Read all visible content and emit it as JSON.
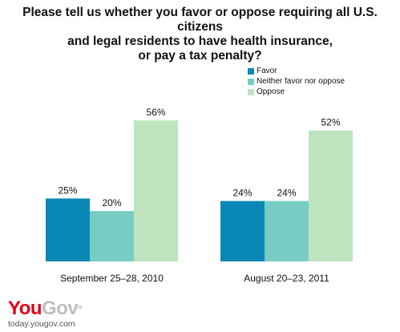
{
  "title_lines": [
    "Please tell us whether you favor or oppose requiring all U.S. citizens",
    "and legal residents to have health insurance,",
    "or pay a tax penalty?"
  ],
  "colors": {
    "favor": "#0a88b5",
    "neither": "#77cdc3",
    "oppose": "#bde4be"
  },
  "brand": {
    "you": "YouGov",
    "url": "today.yougov.com"
  },
  "chart_data": {
    "type": "bar",
    "categories": [
      "September 25–28, 2010",
      "August 20–23, 2011"
    ],
    "series": [
      {
        "name": "Favor",
        "values": [
          25,
          24
        ],
        "color": "#0a88b5"
      },
      {
        "name": "Neither favor nor oppose",
        "values": [
          20,
          24
        ],
        "color": "#77cdc3"
      },
      {
        "name": "Oppose",
        "values": [
          56,
          52
        ],
        "color": "#bde4be"
      }
    ],
    "value_labels": [
      [
        "25%",
        "24%"
      ],
      [
        "20%",
        "24%"
      ],
      [
        "56%",
        "52%"
      ]
    ],
    "ylim": [
      0,
      100
    ],
    "legend_position": "top-right",
    "grid": false
  }
}
